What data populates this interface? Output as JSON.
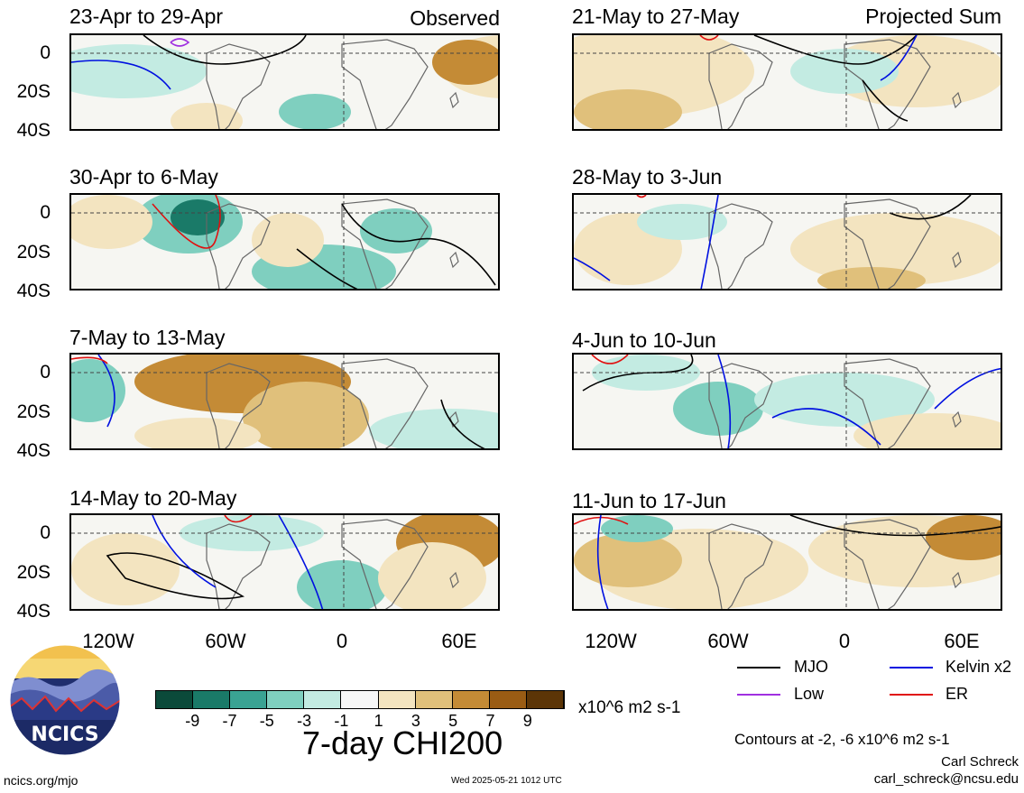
{
  "header": {
    "observed_label": "Observed",
    "projected_label": "Projected Sum"
  },
  "panels_left": [
    {
      "title": "23-Apr to 29-Apr"
    },
    {
      "title": "30-Apr to 6-May"
    },
    {
      "title": "7-May to 13-May"
    },
    {
      "title": "14-May to 20-May"
    }
  ],
  "panels_right": [
    {
      "title": "21-May to 27-May"
    },
    {
      "title": "28-May to 3-Jun"
    },
    {
      "title": "4-Jun to 10-Jun"
    },
    {
      "title": "11-Jun to 17-Jun"
    }
  ],
  "axes": {
    "y_ticks": [
      "0",
      "20S",
      "40S"
    ],
    "x_ticks": [
      "120W",
      "60W",
      "0",
      "60E"
    ]
  },
  "colorbar": {
    "title": "7-day CHI200",
    "units": "x10^6 m2 s-1",
    "tick_labels": [
      "-9",
      "-7",
      "-5",
      "-3",
      "-1",
      "1",
      "3",
      "5",
      "7",
      "9"
    ],
    "colors": [
      "#0b4a3a",
      "#1a7a68",
      "#3aa393",
      "#7fcfbf",
      "#c3ebe2",
      "#f7f7f7",
      "#f3e4c0",
      "#e0c07b",
      "#c48b36",
      "#9a5c14",
      "#5c3507"
    ]
  },
  "legend": {
    "mjo_label": "MJO",
    "kelvin_label": "Kelvin x2",
    "low_label": "Low",
    "er_label": "ER",
    "mjo_color": "#000000",
    "kelvin_color": "#0010e0",
    "low_color": "#a030e0",
    "er_color": "#e01010",
    "contour_note": "Contours at -2, -6 x10^6 m2 s-1"
  },
  "footer": {
    "author": "Carl Schreck",
    "email": "carl_schreck@ncsu.edu",
    "url": "ncics.org/mjo",
    "timestamp": "Wed 2025-05-21 1012 UTC",
    "logo_text": "NCICS"
  }
}
